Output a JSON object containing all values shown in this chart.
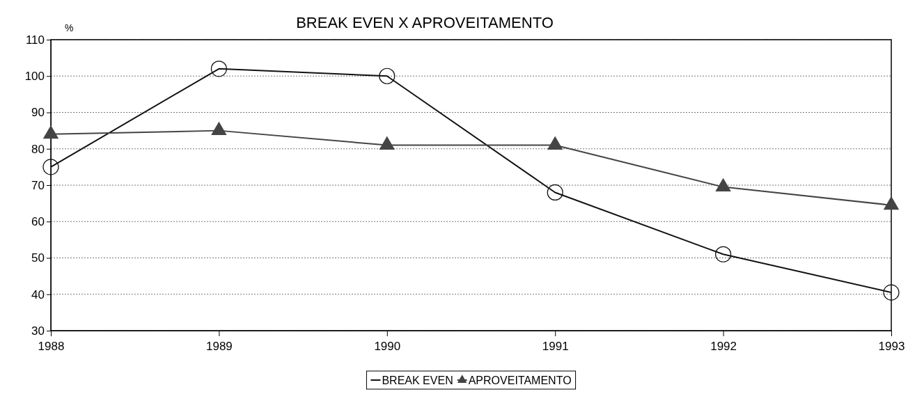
{
  "chart_data": {
    "type": "line",
    "title": "BREAK EVEN  X  APROVEITAMENTO",
    "ylabel": "%",
    "categories": [
      "1988",
      "1989",
      "1990",
      "1991",
      "1992",
      "1993"
    ],
    "series": [
      {
        "name": "BREAK EVEN",
        "color": "#111111",
        "marker": "circle",
        "values": [
          75,
          102,
          100,
          68,
          51,
          40.5
        ]
      },
      {
        "name": "APROVEITAMENTO",
        "color": "#444444",
        "marker": "triangle",
        "values": [
          84,
          85,
          81,
          81,
          69.5,
          64.5
        ]
      }
    ],
    "ylim": [
      30,
      110
    ],
    "yticks": [
      30,
      40,
      50,
      60,
      70,
      80,
      90,
      100,
      110
    ],
    "grid": "y",
    "legend": "bottom",
    "line_style": "solid"
  }
}
